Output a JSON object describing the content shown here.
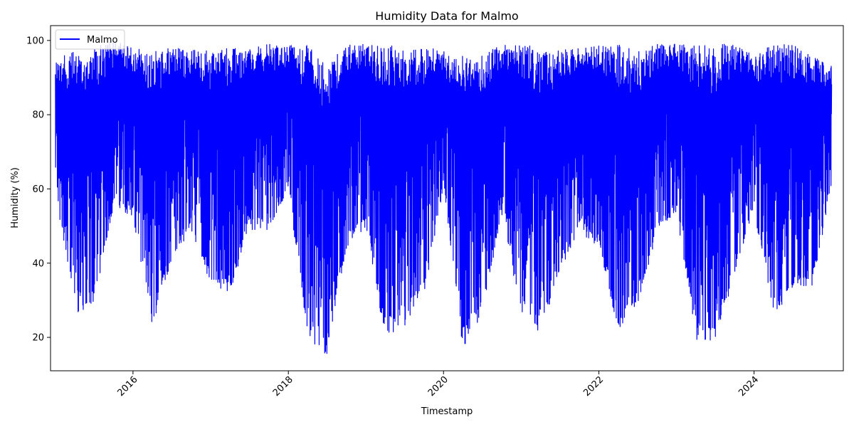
{
  "chart_data": {
    "type": "line",
    "title": "Humidity Data for Malmo",
    "xlabel": "Timestamp",
    "ylabel": "Humidity (%)",
    "xlim": [
      "2014-12-09",
      "2025-02-24"
    ],
    "ylim": [
      11,
      104
    ],
    "x_ticks": [
      "2016",
      "2018",
      "2020",
      "2022",
      "2024"
    ],
    "x_tick_dates": [
      "2016-01-01",
      "2018-01-01",
      "2020-01-01",
      "2022-01-01",
      "2024-01-01"
    ],
    "y_ticks": [
      20,
      40,
      60,
      80,
      100
    ],
    "legend": "top-left",
    "grid": false,
    "colors": {
      "series": "#0000ff"
    },
    "series": [
      {
        "name": "Malmo",
        "color": "#0000ff",
        "x": [
          "2015-01-01",
          "2015-04-01",
          "2015-07-01",
          "2015-10-01",
          "2016-01-01",
          "2016-04-01",
          "2016-07-01",
          "2016-10-01",
          "2017-01-01",
          "2017-04-01",
          "2017-07-01",
          "2017-10-01",
          "2018-01-01",
          "2018-04-01",
          "2018-07-01",
          "2018-10-01",
          "2019-01-01",
          "2019-04-01",
          "2019-07-01",
          "2019-10-01",
          "2020-01-01",
          "2020-04-01",
          "2020-07-01",
          "2020-10-01",
          "2021-01-01",
          "2021-04-01",
          "2021-07-01",
          "2021-10-01",
          "2022-01-01",
          "2022-04-01",
          "2022-07-01",
          "2022-10-01",
          "2023-01-01",
          "2023-04-01",
          "2023-07-01",
          "2023-10-01",
          "2024-01-01",
          "2024-04-01",
          "2024-07-01",
          "2024-10-01",
          "2024-12-31"
        ],
        "min": [
          59,
          26,
          29,
          55,
          52,
          23,
          41,
          49,
          34,
          32,
          49,
          49,
          60,
          20,
          15,
          44,
          50,
          19,
          23,
          31,
          60,
          17,
          26,
          53,
          26,
          21,
          38,
          48,
          44,
          22,
          29,
          47,
          54,
          19,
          19,
          36,
          54,
          25,
          33,
          33,
          61
        ],
        "max": [
          95,
          97,
          98,
          100,
          98,
          97,
          98,
          98,
          97,
          98,
          98,
          99,
          99,
          99,
          93,
          99,
          99,
          99,
          98,
          99,
          97,
          96,
          96,
          99,
          99,
          98,
          98,
          98,
          99,
          99,
          97,
          99,
          99,
          99,
          99,
          99,
          96,
          99,
          99,
          96,
          93
        ]
      }
    ]
  }
}
